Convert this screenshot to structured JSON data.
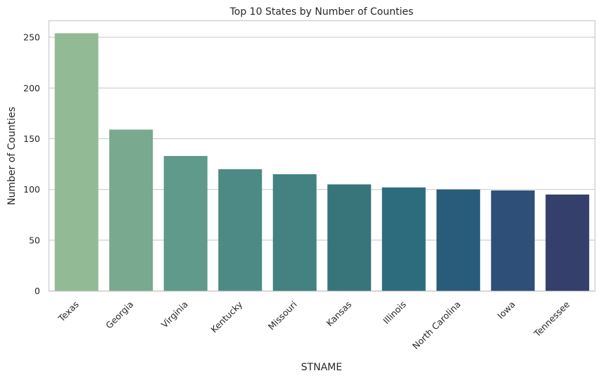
{
  "chart_data": {
    "type": "bar",
    "title": "Top 10 States by Number of Counties",
    "xlabel": "STNAME",
    "ylabel": "Number of Counties",
    "categories": [
      "Texas",
      "Georgia",
      "Virginia",
      "Kentucky",
      "Missouri",
      "Kansas",
      "Illinois",
      "North Carolina",
      "Iowa",
      "Tennessee"
    ],
    "values": [
      254,
      159,
      133,
      120,
      115,
      105,
      102,
      100,
      99,
      95
    ],
    "colors": [
      "#92bb95",
      "#79a98e",
      "#5f9a8b",
      "#4d8a86",
      "#438281",
      "#38757b",
      "#2d6c7c",
      "#295c7a",
      "#2e4f78",
      "#343f6c"
    ],
    "ylim": [
      0,
      266
    ],
    "yticks": [
      0,
      50,
      100,
      150,
      200,
      250
    ],
    "grid": true,
    "grid_axis": "y",
    "legend": "none",
    "xtick_rotation": 45
  }
}
